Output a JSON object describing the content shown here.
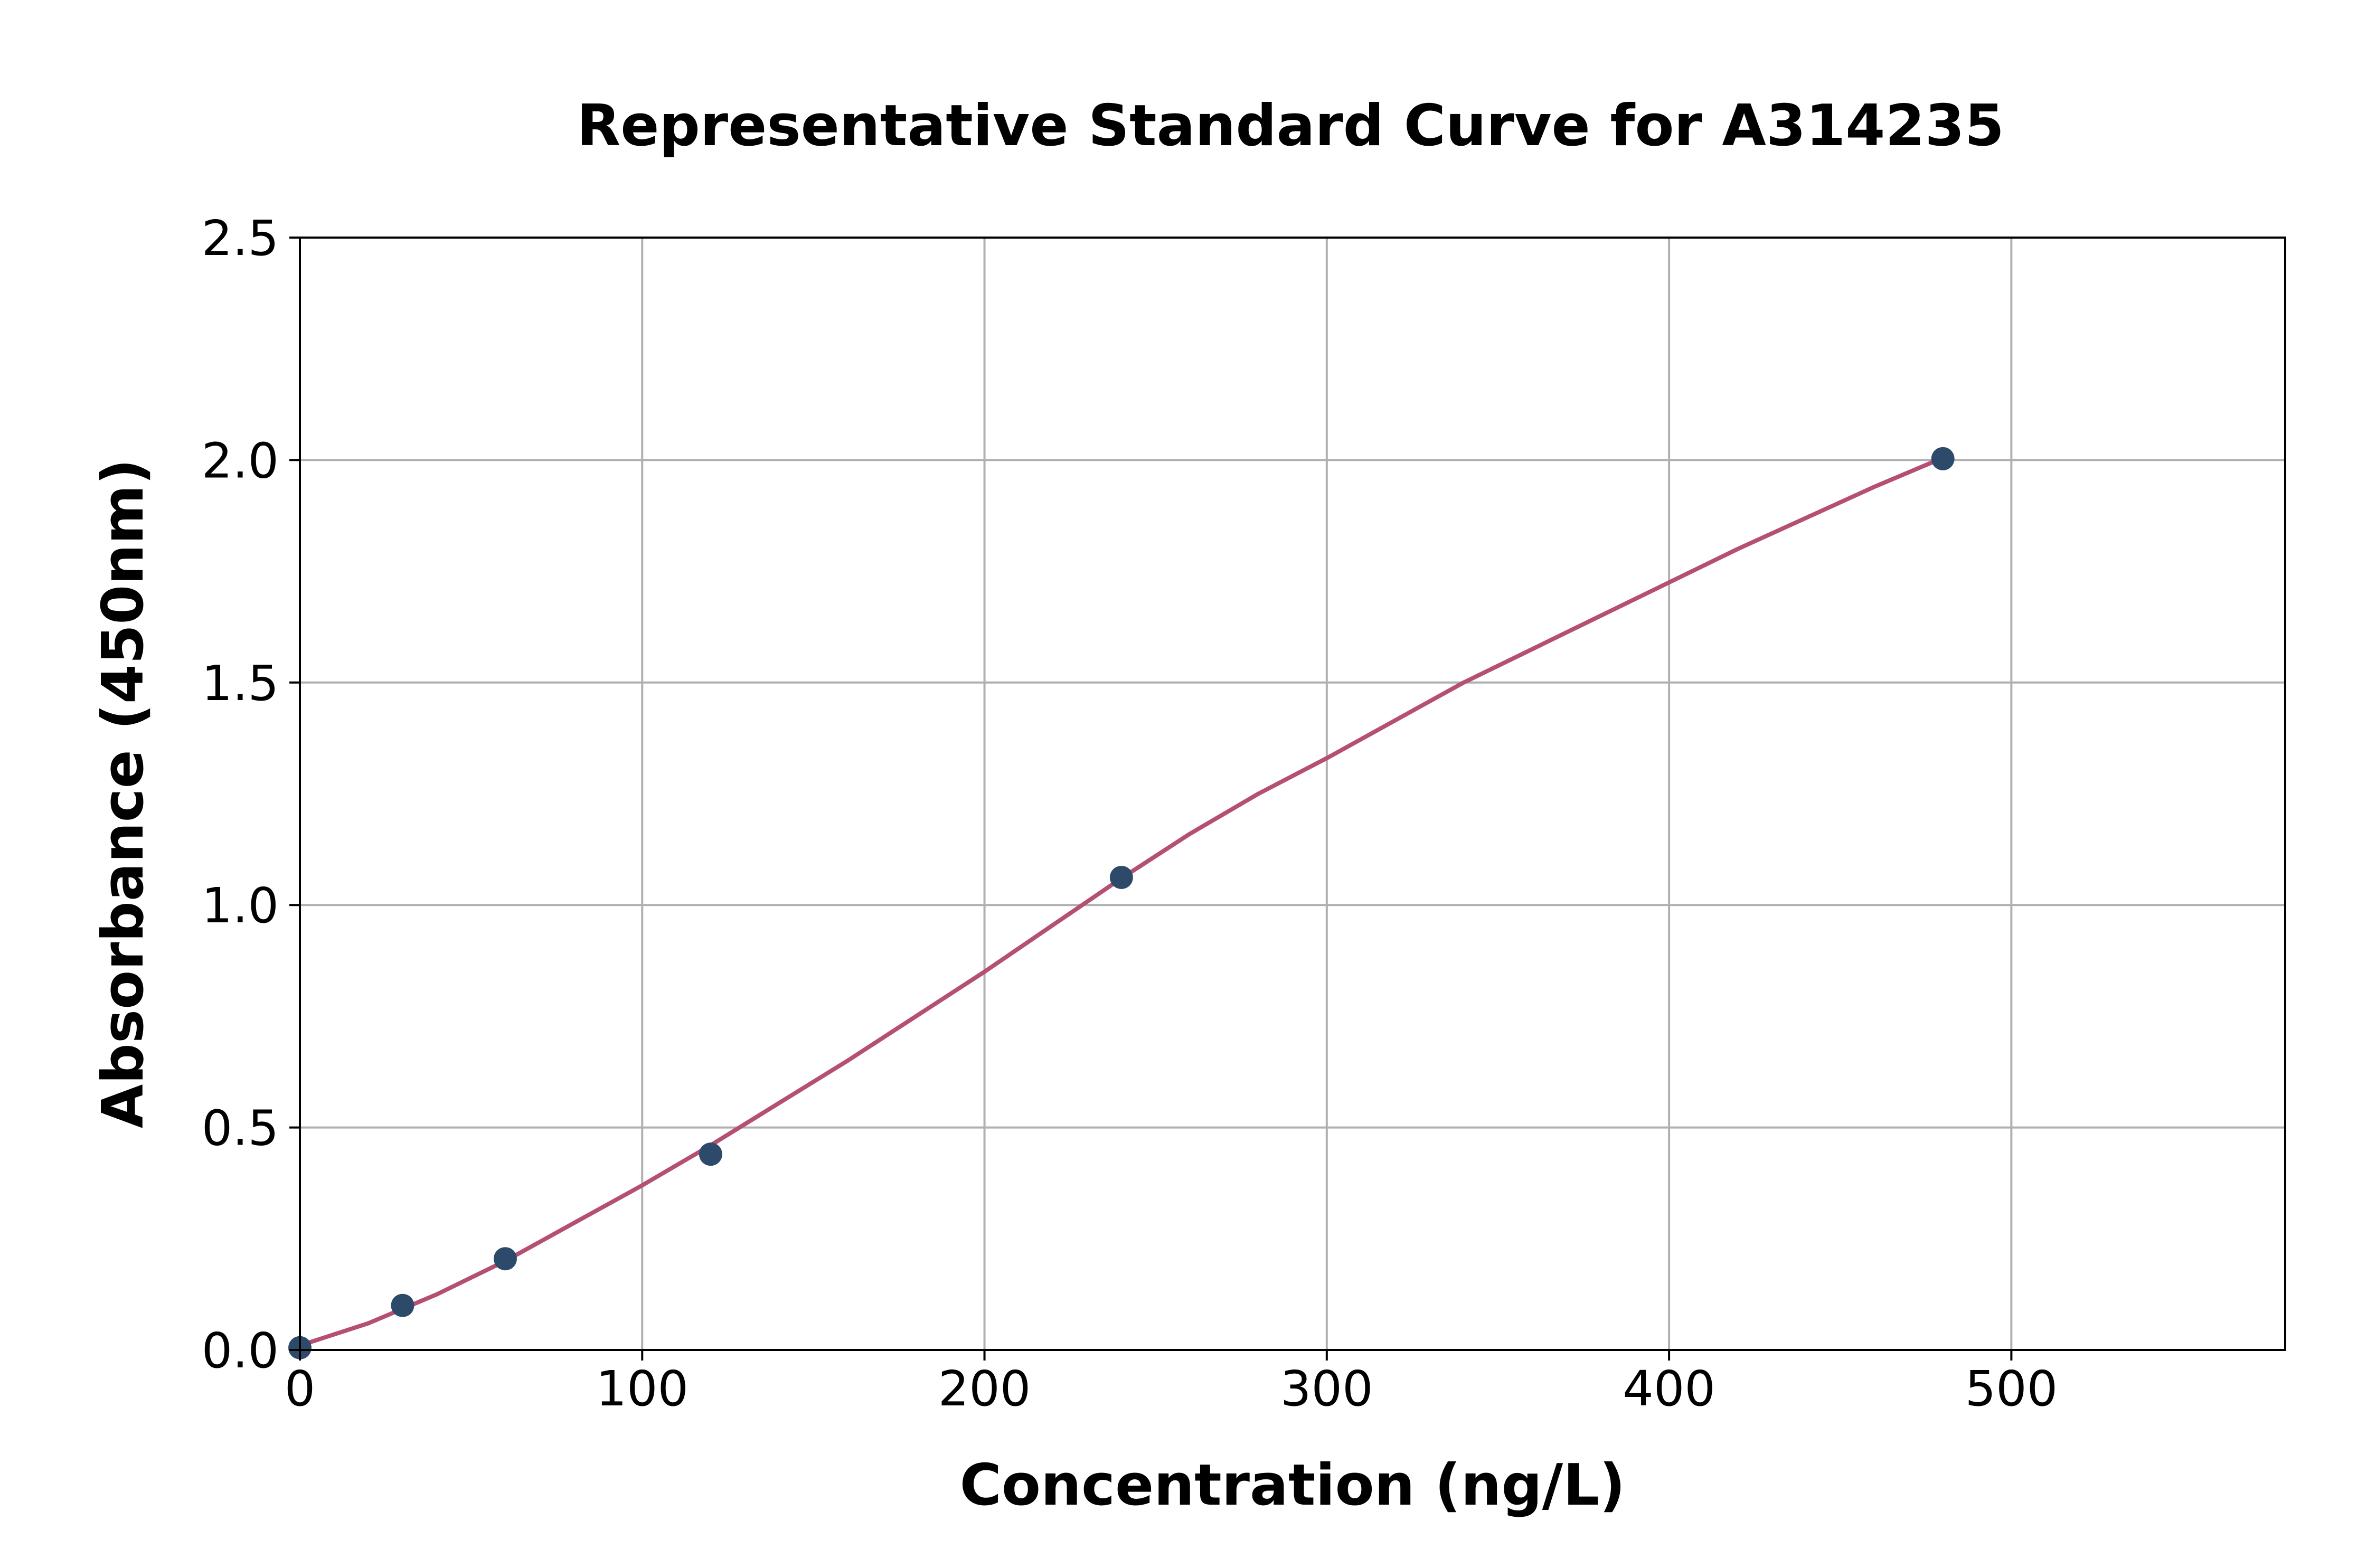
{
  "chart_data": {
    "type": "scatter",
    "title": "Representative Standard Curve for A314235",
    "xlabel": "Concentration (ng/L)",
    "ylabel": "Absorbance (450nm)",
    "xlim": [
      0,
      580
    ],
    "ylim": [
      0,
      2.5
    ],
    "x_ticks": [
      "0",
      "100",
      "200",
      "300",
      "400",
      "500"
    ],
    "y_ticks": [
      "0.0",
      "0.5",
      "1.0",
      "1.5",
      "2.0",
      "2.5"
    ],
    "grid": true,
    "points": {
      "x": [
        0,
        30,
        60,
        120,
        240,
        480
      ],
      "y": [
        0.005,
        0.1,
        0.205,
        0.44,
        1.062,
        2.003
      ],
      "color": "#2e4a6b"
    },
    "fit_curve": {
      "x": [
        0,
        20,
        40,
        60,
        80,
        100,
        120,
        140,
        160,
        180,
        200,
        220,
        240,
        260,
        280,
        300,
        320,
        340,
        360,
        380,
        400,
        420,
        440,
        460,
        480
      ],
      "y": [
        0.01,
        0.06,
        0.125,
        0.2,
        0.285,
        0.37,
        0.46,
        0.555,
        0.65,
        0.75,
        0.85,
        0.955,
        1.06,
        1.16,
        1.25,
        1.33,
        1.415,
        1.5,
        1.575,
        1.65,
        1.725,
        1.8,
        1.87,
        1.94,
        2.005
      ],
      "color": "#b54f73"
    }
  }
}
